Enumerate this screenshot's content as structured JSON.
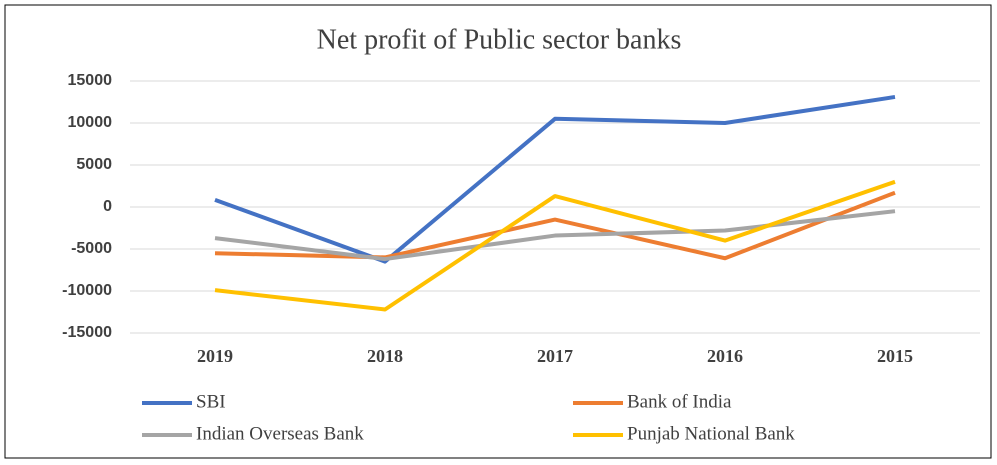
{
  "chart_data": {
    "type": "line",
    "title": "Net profit of Public sector banks",
    "categories": [
      "2019",
      "2018",
      "2017",
      "2016",
      "2015"
    ],
    "series": [
      {
        "name": "SBI",
        "color": "#4472c4",
        "values": [
          850,
          -6500,
          10500,
          10000,
          13100
        ]
      },
      {
        "name": "Bank of India",
        "color": "#ed7d31",
        "values": [
          -5500,
          -6000,
          -1500,
          -6100,
          1700
        ]
      },
      {
        "name": "Indian Overseas Bank",
        "color": "#a5a5a5",
        "values": [
          -3700,
          -6200,
          -3400,
          -2800,
          -500
        ]
      },
      {
        "name": "Punjab National Bank",
        "color": "#ffc000",
        "values": [
          -9900,
          -12200,
          1300,
          -4000,
          3000
        ]
      }
    ],
    "ylim": [
      -15000,
      15000
    ],
    "yticks": [
      -15000,
      -10000,
      -5000,
      0,
      5000,
      10000,
      15000
    ],
    "grid": true
  }
}
